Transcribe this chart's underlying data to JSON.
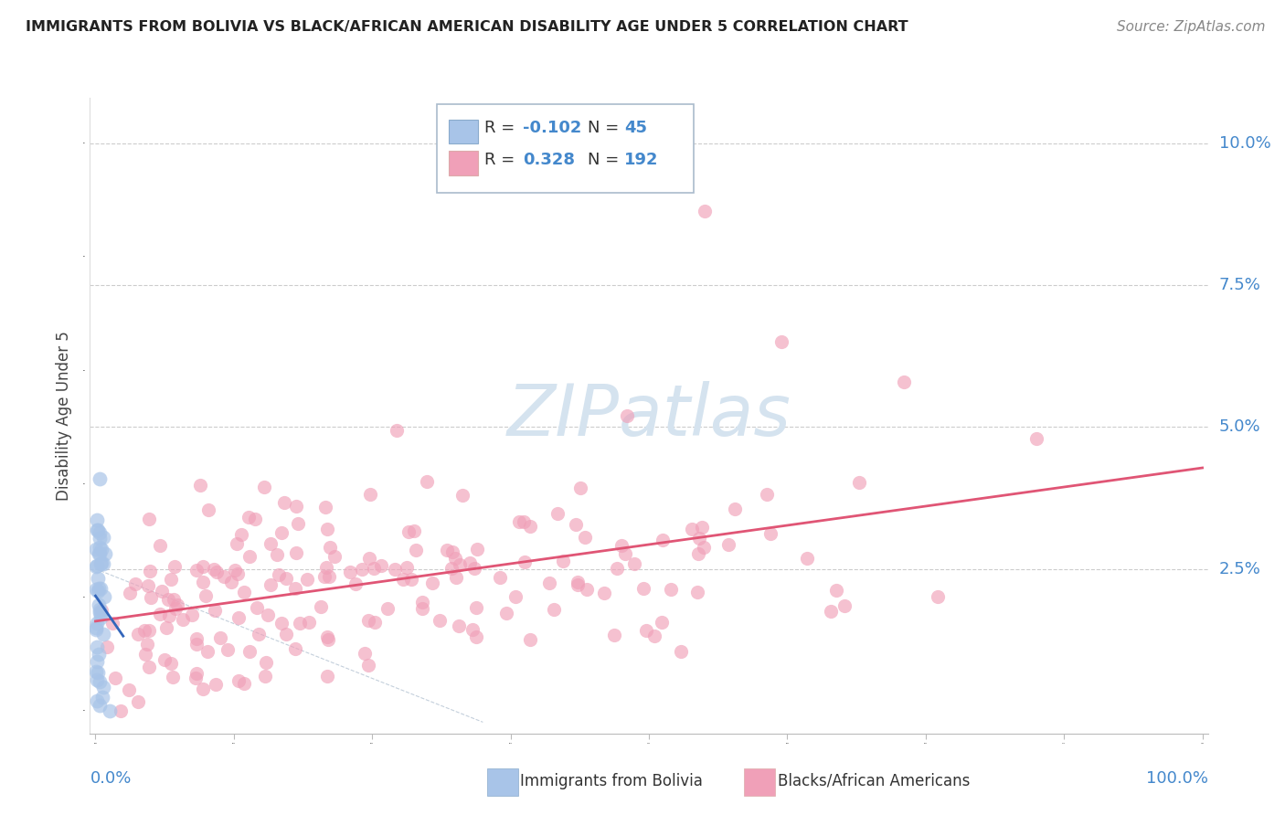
{
  "title": "IMMIGRANTS FROM BOLIVIA VS BLACK/AFRICAN AMERICAN DISABILITY AGE UNDER 5 CORRELATION CHART",
  "source": "Source: ZipAtlas.com",
  "ylabel": "Disability Age Under 5",
  "ytick_values": [
    0.0,
    0.025,
    0.05,
    0.075,
    0.1
  ],
  "ytick_labels": [
    "",
    "2.5%",
    "5.0%",
    "7.5%",
    "10.0%"
  ],
  "color_blue": "#a8c4e8",
  "color_pink": "#f0a0b8",
  "color_blue_line": "#3366bb",
  "color_pink_line": "#e05575",
  "color_dashed": "#aabbcc",
  "watermark_color": "#d5e3ef",
  "title_color": "#222222",
  "source_color": "#888888",
  "axis_label_color": "#4488cc",
  "ylabel_color": "#444444"
}
